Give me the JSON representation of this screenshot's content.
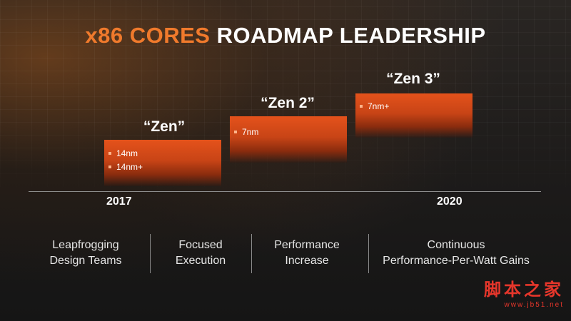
{
  "title": {
    "accent": "x86 CORES",
    "rest": "ROADMAP LEADERSHIP"
  },
  "colors": {
    "accent": "#f07a2c",
    "box": "#d9501a",
    "text": "#ffffff"
  },
  "generations": [
    {
      "name": "“Zen”",
      "items": [
        "14nm",
        "14nm+"
      ]
    },
    {
      "name": "“Zen 2”",
      "items": [
        "7nm"
      ]
    },
    {
      "name": "“Zen 3”",
      "items": [
        "7nm+"
      ]
    }
  ],
  "timeline": {
    "start_year": "2017",
    "end_year": "2020"
  },
  "descriptions": [
    {
      "line1": "Leapfrogging",
      "line2": "Design Teams"
    },
    {
      "line1": "Focused",
      "line2": "Execution"
    },
    {
      "line1": "Performance",
      "line2": "Increase"
    },
    {
      "line1": "Continuous",
      "line2": "Performance-Per-Watt Gains"
    }
  ],
  "watermark": {
    "chinese": "脚本之家",
    "url": "www.jb51.net"
  }
}
